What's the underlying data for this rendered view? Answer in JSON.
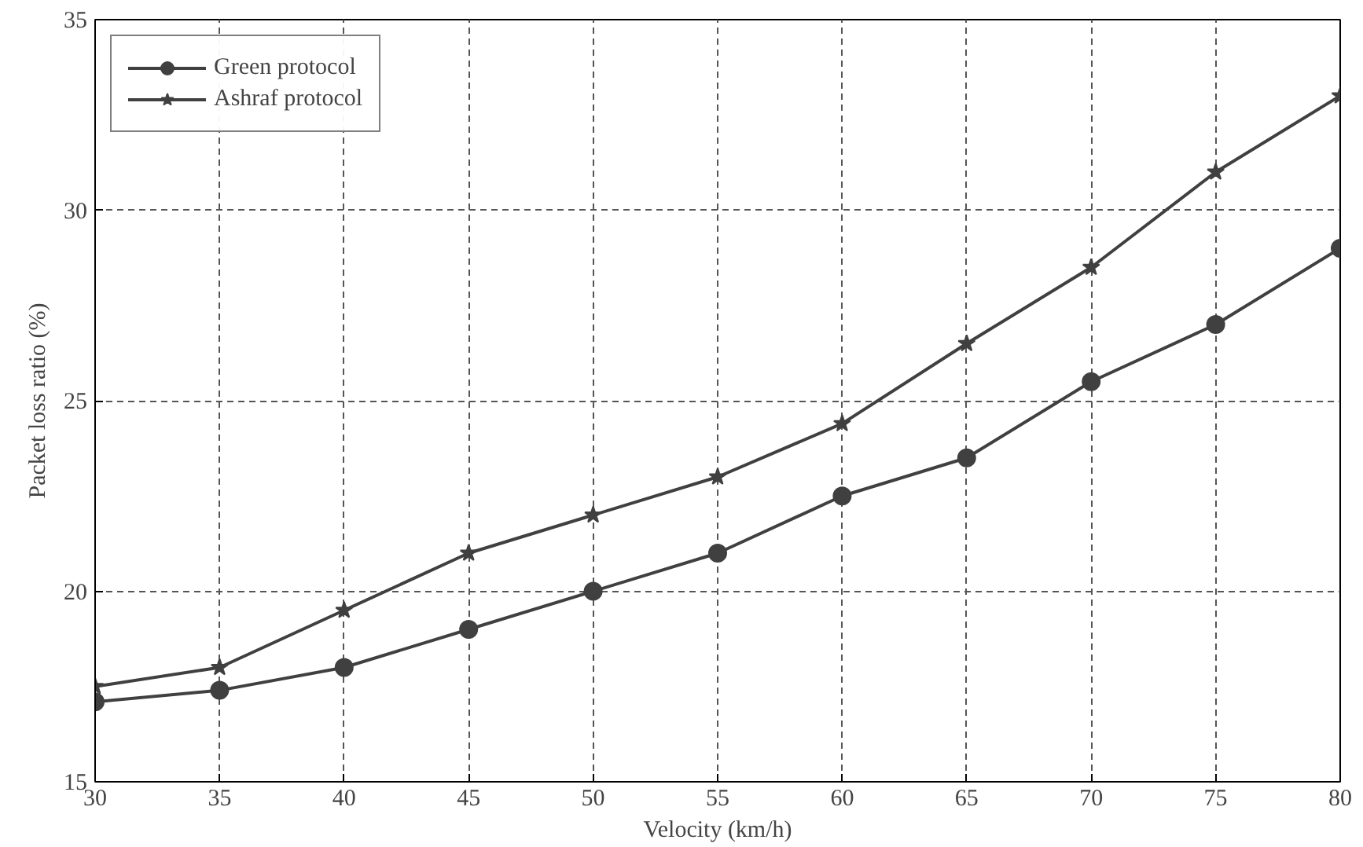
{
  "chart_data": {
    "type": "line",
    "xlabel": "Velocity (km/h)",
    "ylabel": "Packet loss ratio (%)",
    "x": [
      30,
      35,
      40,
      45,
      50,
      55,
      60,
      65,
      70,
      75,
      80
    ],
    "series": [
      {
        "name": "Green protocol",
        "color": "#404040",
        "marker": "circle",
        "values": [
          17.1,
          17.4,
          18.0,
          19.0,
          20.0,
          21.0,
          22.5,
          23.5,
          25.5,
          27.0,
          29.0
        ]
      },
      {
        "name": "Ashraf protocol",
        "color": "#404040",
        "marker": "star",
        "values": [
          17.5,
          18.0,
          19.5,
          21.0,
          22.0,
          23.0,
          24.4,
          26.5,
          28.5,
          31.0,
          33.0
        ]
      }
    ],
    "xlim": [
      30,
      80
    ],
    "ylim": [
      15,
      35
    ],
    "xticks": [
      30,
      35,
      40,
      45,
      50,
      55,
      60,
      65,
      70,
      75,
      80
    ],
    "yticks": [
      15,
      20,
      25,
      30,
      35
    ],
    "grid": true,
    "legend": "top left",
    "line_style": "solid"
  }
}
